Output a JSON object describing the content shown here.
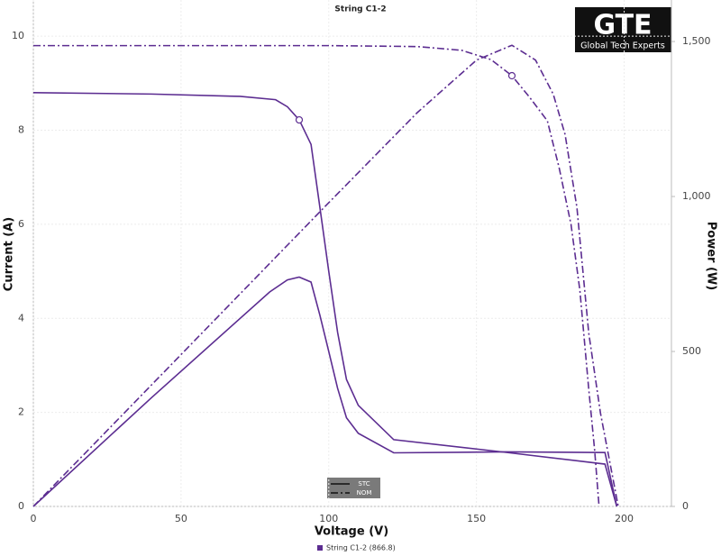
{
  "chart_data": {
    "type": "line",
    "title": "String C1-2",
    "logo": {
      "title": "GTE",
      "subtitle": "Global Tech Experts"
    },
    "x_label": "Voltage (V)",
    "y_label": "Current (A)",
    "y2_label": "Power (W)",
    "xlim": [
      0,
      216
    ],
    "ylim": [
      0,
      10.77
    ],
    "y2lim": [
      0,
      1634
    ],
    "xticks": [
      0,
      50,
      100,
      150,
      200
    ],
    "yticks": [
      0,
      2,
      4,
      6,
      8,
      10
    ],
    "y2ticks": [
      0,
      500,
      {
        "value": 1000,
        "label": "1,000"
      },
      {
        "value": 1500,
        "label": "1,500"
      }
    ],
    "grid": true,
    "color": "#5c2d91",
    "legend_entry": "String C1-2 (866.8)",
    "line_styles": [
      {
        "label": "STC",
        "dash": "solid"
      },
      {
        "label": "NOM",
        "dash": "dashdot"
      }
    ],
    "series": [
      {
        "style": "solid",
        "axis": "y",
        "x": [
          0,
          40,
          70,
          82,
          86,
          90,
          94,
          97,
          100,
          103,
          106,
          110,
          122,
          160,
          193.5,
          197.5
        ],
        "values": [
          8.8,
          8.77,
          8.72,
          8.65,
          8.5,
          8.22,
          7.7,
          6.36,
          5.0,
          3.7,
          2.7,
          2.15,
          1.42,
          1.15,
          0.9,
          0
        ]
      },
      {
        "style": "solid",
        "axis": "y2",
        "x": [
          0,
          40,
          80,
          86,
          90,
          94,
          97,
          100,
          103,
          106,
          110,
          122,
          160,
          193.5,
          197.5
        ],
        "values": [
          0,
          351,
          692,
          731,
          740,
          724,
          617,
          500,
          381,
          286,
          236,
          173,
          176,
          174,
          0
        ]
      },
      {
        "style": "dashdot",
        "axis": "y",
        "x": [
          0,
          100,
          130,
          145,
          155,
          162,
          168,
          174,
          178,
          182,
          185,
          188,
          190,
          191.5
        ],
        "values": [
          9.8,
          9.8,
          9.78,
          9.7,
          9.5,
          9.16,
          8.7,
          8.2,
          7.2,
          6.0,
          4.6,
          2.5,
          1.2,
          0
        ]
      },
      {
        "style": "dashdot",
        "axis": "y2",
        "x": [
          0,
          50,
          100,
          130,
          150,
          162,
          170,
          176,
          180,
          184,
          188,
          192,
          195,
          198
        ],
        "values": [
          0,
          490,
          980,
          1271,
          1440,
          1488,
          1440,
          1330,
          1200,
          965,
          560,
          300,
          150,
          0
        ]
      }
    ],
    "points": [
      {
        "x": 90,
        "y": 8.22
      },
      {
        "x": 162,
        "y": 9.16
      }
    ]
  }
}
